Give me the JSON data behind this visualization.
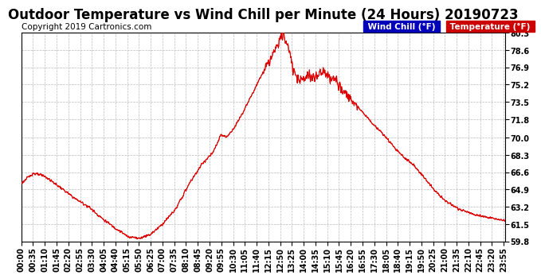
{
  "title": "Outdoor Temperature vs Wind Chill per Minute (24 Hours) 20190723",
  "copyright": "Copyright 2019 Cartronics.com",
  "legend_wind_chill": "Wind Chill (°F)",
  "legend_temperature": "Temperature (°F)",
  "ylabel_right_ticks": [
    80.3,
    78.6,
    76.9,
    75.2,
    73.5,
    71.8,
    70.0,
    68.3,
    66.6,
    64.9,
    63.2,
    61.5,
    59.8
  ],
  "ymin": 59.8,
  "ymax": 80.3,
  "background_color": "#ffffff",
  "plot_bg_color": "#ffffff",
  "grid_color": "#bbbbbb",
  "line_color": "#dd0000",
  "wind_chill_legend_color": "#0000cc",
  "temp_legend_color": "#cc0000",
  "title_fontsize": 12,
  "copyright_fontsize": 7.5,
  "tick_fontsize": 7
}
